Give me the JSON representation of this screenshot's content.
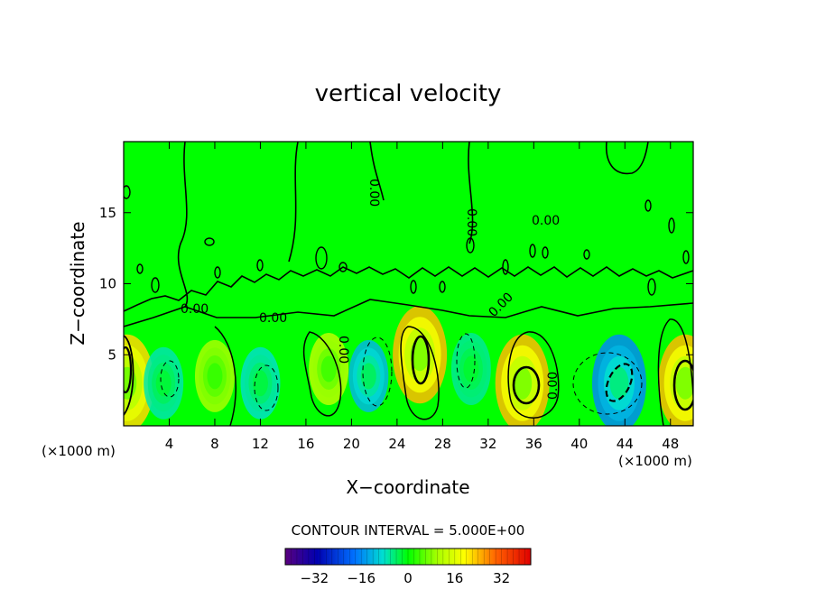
{
  "chart_data": {
    "type": "heatmap",
    "title": "vertical velocity",
    "xlabel": "X−coordinate",
    "ylabel": "Z−coordinate",
    "x_unit": "(×1000 m)",
    "y_unit": "(×1000 m)",
    "xlim": [
      0,
      50
    ],
    "ylim": [
      0,
      20
    ],
    "x_ticks": [
      4,
      8,
      12,
      16,
      20,
      24,
      28,
      32,
      36,
      40,
      44,
      48
    ],
    "x_tick_labels": [
      "4",
      "8",
      "12",
      "16",
      "20",
      "24",
      "28",
      "32",
      "36",
      "40",
      "44",
      "48"
    ],
    "y_ticks": [
      5,
      10,
      15
    ],
    "y_tick_labels": [
      "5",
      "10",
      "15"
    ],
    "contour_interval_label": "CONTOUR INTERVAL = 5.000E+00",
    "contour_labels": [
      "0.00",
      "0.00",
      "0.00",
      "0.00",
      "0.00",
      "0.00",
      "0.00",
      "0.00"
    ],
    "colorbar": {
      "range": [
        -42,
        42
      ],
      "ticks": [
        -32,
        -16,
        0,
        16,
        32
      ],
      "tick_labels": [
        "−32",
        "−16",
        "0",
        "16",
        "32"
      ],
      "colormap": "rainbow"
    },
    "features": [
      {
        "kind": "updraft",
        "x": 0.3,
        "z": 3.0,
        "value": 22
      },
      {
        "kind": "downdraft",
        "x": 3.5,
        "z": 3.0,
        "value": -7
      },
      {
        "kind": "updraft",
        "x": 8.0,
        "z": 3.5,
        "value": 10
      },
      {
        "kind": "downdraft",
        "x": 12.0,
        "z": 3.0,
        "value": -8
      },
      {
        "kind": "updraft",
        "x": 18.0,
        "z": 4.0,
        "value": 12
      },
      {
        "kind": "downdraft",
        "x": 21.5,
        "z": 3.5,
        "value": -12
      },
      {
        "kind": "updraft",
        "x": 26.0,
        "z": 5.0,
        "value": 24
      },
      {
        "kind": "downdraft",
        "x": 30.5,
        "z": 4.0,
        "value": -6
      },
      {
        "kind": "updraft",
        "x": 35.0,
        "z": 3.0,
        "value": 24
      },
      {
        "kind": "downdraft",
        "x": 43.5,
        "z": 3.0,
        "value": -16
      },
      {
        "kind": "updraft",
        "x": 49.3,
        "z": 3.0,
        "value": 24
      }
    ]
  }
}
